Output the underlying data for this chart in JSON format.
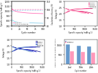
{
  "top_left": {
    "xlabel": "Cycle number",
    "ylabel_left": "Specific capacity (mAh g-1)",
    "ylabel_right": "Coulombic efficiency (%)",
    "legend": [
      "SPAN-S-1",
      "SPAN-S-controlled"
    ],
    "cap_color1": "#ff69b4",
    "cap_color2": "#87ceeb",
    "ce_color1": "#ff69b4",
    "ce_color2": "#87ceeb",
    "xlim": [
      0,
      105
    ],
    "ylim_cap": [
      700,
      1200
    ],
    "ylim_ce": [
      80,
      110
    ]
  },
  "top_right": {
    "xlabel": "Specific capacity (mAh g-1)",
    "ylabel": "Voltage (V)",
    "legend": [
      "Cycle 1",
      "Cycle 2",
      "Cycle 5",
      "Cycle 10",
      "Cycle 20"
    ],
    "colors": [
      "#cc0055",
      "#ff2277",
      "#ff77aa",
      "#ffaacc",
      "#ffccdd"
    ],
    "xlim": [
      0,
      1600
    ],
    "ylim": [
      1.0,
      3.0
    ]
  },
  "bottom_left": {
    "xlabel": "Specific capacity (mAh g-1)",
    "ylabel": "Voltage (V)",
    "legend": [
      "Cycle 1",
      "Cycle 2",
      "Cycle 5",
      "Cycle 10",
      "Cycle 20"
    ],
    "colors": [
      "#000080",
      "#0000cc",
      "#3355cc",
      "#6688cc",
      "#99bbdd"
    ],
    "xlim": [
      0,
      1600
    ],
    "ylim": [
      1.0,
      3.0
    ]
  },
  "bottom_right": {
    "xlabel": "Cycle number",
    "ylabel": "Specific discharge capacity (mAh g-1)",
    "categories": [
      "2nd",
      "10th",
      "20th"
    ],
    "span_s1": [
      1050,
      980,
      940
    ],
    "span_ctrl": [
      700,
      650,
      600
    ],
    "color1": "#6699cc",
    "color2": "#ff99bb",
    "legend": [
      "SPAN-S-1",
      "SPAN-S-2"
    ],
    "ylim": [
      0,
      1300
    ]
  },
  "bg_color": "#ffffff"
}
